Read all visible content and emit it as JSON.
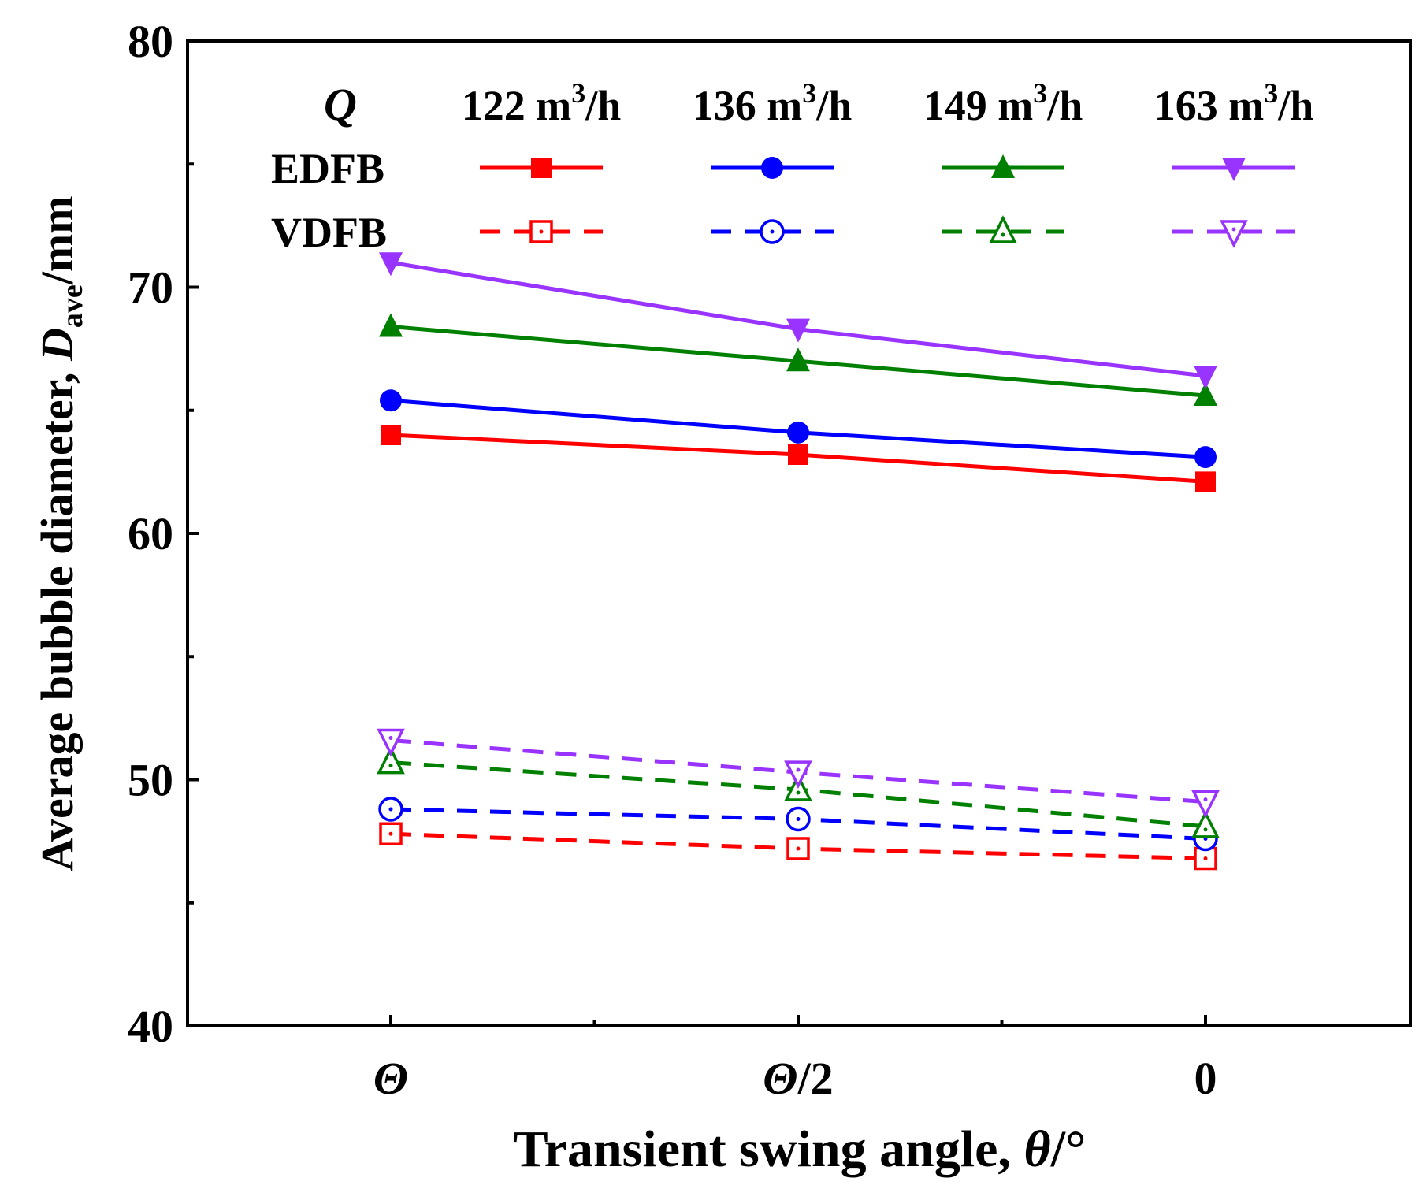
{
  "chart_data": {
    "type": "line",
    "xlabel_main": "Transient swing angle, ",
    "xlabel_symbol": "θ",
    "xlabel_unit": "/°",
    "ylabel_main": "Average bubble diameter, ",
    "ylabel_symbol": "D",
    "ylabel_sub": "ave",
    "ylabel_unit": "/mm",
    "categories": [
      {
        "symbol": "Θ",
        "suffix": ""
      },
      {
        "symbol": "Θ",
        "suffix": "/2"
      },
      {
        "symbol": "",
        "suffix": "0"
      }
    ],
    "ylim": [
      40,
      80
    ],
    "yticks": [
      40,
      50,
      60,
      70,
      80
    ],
    "legend": {
      "q_label": "Q",
      "flow_rates": [
        {
          "value": "122 m",
          "exp": "3",
          "unit": "/h"
        },
        {
          "value": "136 m",
          "exp": "3",
          "unit": "/h"
        },
        {
          "value": "149 m",
          "exp": "3",
          "unit": "/h"
        },
        {
          "value": "163 m",
          "exp": "3",
          "unit": "/h"
        }
      ],
      "row_labels": [
        "EDFB",
        "VDFB"
      ],
      "placement": "top"
    },
    "series": [
      {
        "group": "EDFB",
        "flow": "122",
        "color": "#ff0000",
        "marker": "square",
        "filled": true,
        "dashed": false,
        "values": [
          64.0,
          63.2,
          62.1
        ]
      },
      {
        "group": "EDFB",
        "flow": "136",
        "color": "#0000ff",
        "marker": "circle",
        "filled": true,
        "dashed": false,
        "values": [
          65.4,
          64.1,
          63.1
        ]
      },
      {
        "group": "EDFB",
        "flow": "149",
        "color": "#008000",
        "marker": "triangle-up",
        "filled": true,
        "dashed": false,
        "values": [
          68.4,
          67.0,
          65.6
        ]
      },
      {
        "group": "EDFB",
        "flow": "163",
        "color": "#9933ff",
        "marker": "triangle-down",
        "filled": true,
        "dashed": false,
        "values": [
          71.0,
          68.3,
          66.4
        ]
      },
      {
        "group": "VDFB",
        "flow": "122",
        "color": "#ff0000",
        "marker": "square",
        "filled": false,
        "dashed": true,
        "values": [
          47.8,
          47.2,
          46.8
        ]
      },
      {
        "group": "VDFB",
        "flow": "136",
        "color": "#0000ff",
        "marker": "circle",
        "filled": false,
        "dashed": true,
        "values": [
          48.8,
          48.4,
          47.6
        ]
      },
      {
        "group": "VDFB",
        "flow": "149",
        "color": "#008000",
        "marker": "triangle-up",
        "filled": false,
        "dashed": true,
        "values": [
          50.7,
          49.6,
          48.1
        ]
      },
      {
        "group": "VDFB",
        "flow": "163",
        "color": "#9933ff",
        "marker": "triangle-down",
        "filled": false,
        "dashed": true,
        "values": [
          51.6,
          50.3,
          49.1
        ]
      }
    ]
  }
}
